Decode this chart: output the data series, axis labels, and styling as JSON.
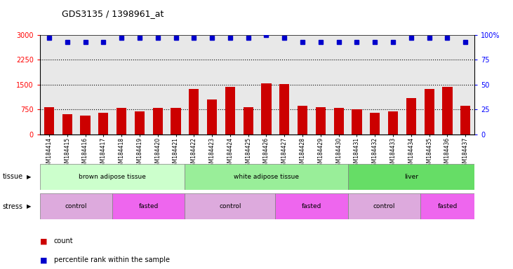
{
  "title": "GDS3135 / 1398961_at",
  "samples": [
    "GSM184414",
    "GSM184415",
    "GSM184416",
    "GSM184417",
    "GSM184418",
    "GSM184419",
    "GSM184420",
    "GSM184421",
    "GSM184422",
    "GSM184423",
    "GSM184424",
    "GSM184425",
    "GSM184426",
    "GSM184427",
    "GSM184428",
    "GSM184429",
    "GSM184430",
    "GSM184431",
    "GSM184432",
    "GSM184433",
    "GSM184434",
    "GSM184435",
    "GSM184436",
    "GSM184437"
  ],
  "counts": [
    820,
    620,
    580,
    660,
    800,
    700,
    800,
    800,
    1380,
    1050,
    1430,
    820,
    1540,
    1510,
    870,
    820,
    800,
    750,
    650,
    700,
    1100,
    1380,
    1440,
    870
  ],
  "percentile_ranks": [
    97,
    93,
    93,
    93,
    97,
    97,
    97,
    97,
    97,
    97,
    97,
    97,
    100,
    97,
    93,
    93,
    93,
    93,
    93,
    93,
    97,
    97,
    97,
    93
  ],
  "bar_color": "#cc0000",
  "dot_color": "#0000cc",
  "ylim_left": [
    0,
    3000
  ],
  "ylim_right": [
    0,
    100
  ],
  "yticks_left": [
    0,
    750,
    1500,
    2250,
    3000
  ],
  "yticks_right": [
    0,
    25,
    50,
    75,
    100
  ],
  "grid_lines": [
    750,
    1500,
    2250
  ],
  "tissue_groups": [
    {
      "label": "brown adipose tissue",
      "start": 0,
      "end": 8,
      "color": "#ccffcc"
    },
    {
      "label": "white adipose tissue",
      "start": 8,
      "end": 17,
      "color": "#99ee99"
    },
    {
      "label": "liver",
      "start": 17,
      "end": 24,
      "color": "#66dd66"
    }
  ],
  "stress_groups": [
    {
      "label": "control",
      "start": 0,
      "end": 4,
      "color": "#ddaadd"
    },
    {
      "label": "fasted",
      "start": 4,
      "end": 8,
      "color": "#ee66ee"
    },
    {
      "label": "control",
      "start": 8,
      "end": 13,
      "color": "#ddaadd"
    },
    {
      "label": "fasted",
      "start": 13,
      "end": 17,
      "color": "#ee66ee"
    },
    {
      "label": "control",
      "start": 17,
      "end": 21,
      "color": "#ddaadd"
    },
    {
      "label": "fasted",
      "start": 21,
      "end": 24,
      "color": "#ee66ee"
    }
  ],
  "legend_count_label": "count",
  "legend_pct_label": "percentile rank within the sample",
  "tissue_arrow_label": "tissue",
  "stress_arrow_label": "stress",
  "bg_color": "#ffffff",
  "plot_bg_color": "#e8e8e8"
}
